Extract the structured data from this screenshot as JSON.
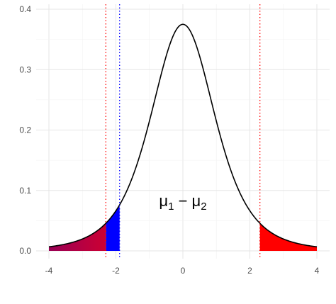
{
  "chart_data": {
    "type": "area",
    "title": "",
    "xlabel": "",
    "ylabel": "",
    "xlim": [
      -4,
      4
    ],
    "ylim": [
      0,
      0.4
    ],
    "x_ticks": [
      -4,
      -2,
      0,
      2,
      4
    ],
    "x_tick_labels": [
      "-4",
      "-2",
      "0",
      "2",
      "4"
    ],
    "y_ticks": [
      0.0,
      0.1,
      0.2,
      0.3,
      0.4
    ],
    "y_tick_labels": [
      "0.0",
      "0.1",
      "0.2",
      "0.3",
      "0.4"
    ],
    "grid": true,
    "legend": "none",
    "curve": {
      "distribution": "t",
      "df": 4,
      "peak_density": 0.375,
      "color": "#000000"
    },
    "shaded_regions": [
      {
        "from": -4,
        "to": -2.3,
        "color_start": "#990055",
        "color_end": "#cc0033",
        "style": "gradient"
      },
      {
        "from": -2.3,
        "to": -1.89,
        "color": "#0000ff"
      },
      {
        "from": 2.3,
        "to": 4,
        "color": "#ff0000"
      }
    ],
    "vlines": [
      {
        "x": -2.3,
        "color": "#ff0000",
        "style": "dotted"
      },
      {
        "x": -1.89,
        "color": "#0000ff",
        "style": "dotted"
      },
      {
        "x": 2.3,
        "color": "#ff0000",
        "style": "dotted"
      }
    ],
    "annotation": {
      "x": 0,
      "y": 0.083,
      "main": "μ",
      "sub1": "1",
      "sep": " − ",
      "main2": "μ",
      "sub2": "2"
    }
  }
}
